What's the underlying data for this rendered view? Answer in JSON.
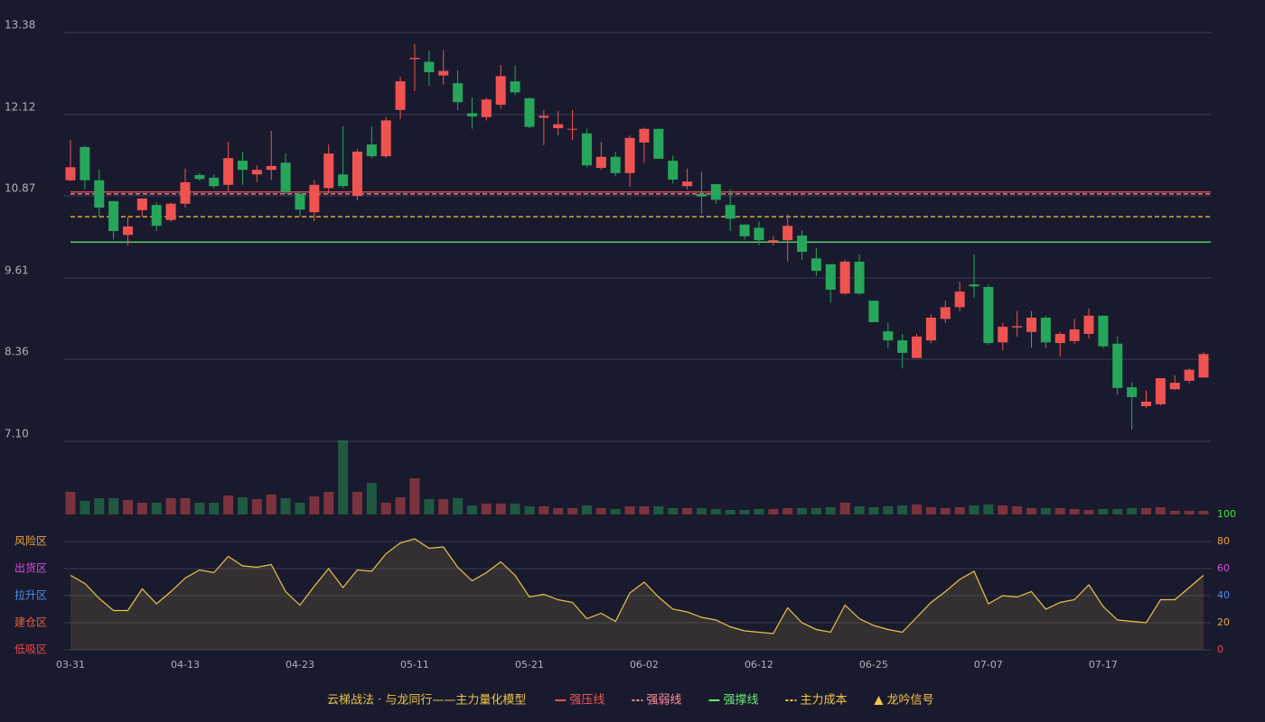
{
  "chart_data": {
    "type": "candlestick",
    "title": "云梯战法 · 与龙同行——主力量化模型",
    "categories": [
      "03-31",
      null,
      null,
      null,
      null,
      null,
      null,
      null,
      "04-13",
      null,
      null,
      null,
      null,
      null,
      null,
      null,
      "04-23",
      null,
      null,
      null,
      null,
      null,
      null,
      null,
      "05-11",
      null,
      null,
      null,
      null,
      null,
      null,
      null,
      "05-21",
      null,
      null,
      null,
      null,
      null,
      null,
      null,
      "06-02",
      null,
      null,
      null,
      null,
      null,
      null,
      null,
      "06-12",
      null,
      null,
      null,
      null,
      null,
      null,
      null,
      "06-25",
      null,
      null,
      null,
      null,
      null,
      null,
      null,
      "07-07",
      null,
      null,
      null,
      null,
      null,
      null,
      null,
      "07-17",
      null,
      null,
      null,
      null,
      null,
      null,
      null
    ],
    "open": [
      11.11,
      11.62,
      11.11,
      10.79,
      10.27,
      10.65,
      10.73,
      10.5,
      10.75,
      11.19,
      11.15,
      11.04,
      11.41,
      11.2,
      11.27,
      11.38,
      10.9,
      10.62,
      10.99,
      11.2,
      10.87,
      11.66,
      11.48,
      12.19,
      12.97,
      12.93,
      12.72,
      12.6,
      12.14,
      12.08,
      12.27,
      12.63,
      12.37,
      12.07,
      11.91,
      11.89,
      11.83,
      11.3,
      11.47,
      11.22,
      11.69,
      11.9,
      11.41,
      11.02,
      10.9,
      11.05,
      10.73,
      10.43,
      10.38,
      10.16,
      10.19,
      10.26,
      9.91,
      9.82,
      9.37,
      9.86,
      9.26,
      8.79,
      8.65,
      8.38,
      8.65,
      8.98,
      9.16,
      9.51,
      9.47,
      8.62,
      8.85,
      8.78,
      9.0,
      8.61,
      8.64,
      8.75,
      9.03,
      8.6,
      7.93,
      7.64,
      7.67,
      7.9,
      8.03,
      8.08
    ],
    "high": [
      11.73,
      11.64,
      11.27,
      10.79,
      10.55,
      10.83,
      10.77,
      10.77,
      11.29,
      11.22,
      11.2,
      11.7,
      11.55,
      11.34,
      11.87,
      11.52,
      10.94,
      11.11,
      11.66,
      11.94,
      11.59,
      11.94,
      12.08,
      12.7,
      13.2,
      13.1,
      13.11,
      12.8,
      12.38,
      12.38,
      12.88,
      12.87,
      12.38,
      12.19,
      12.17,
      12.19,
      11.9,
      11.7,
      11.55,
      11.8,
      11.92,
      11.9,
      11.49,
      11.29,
      11.24,
      11.05,
      10.97,
      10.43,
      10.48,
      10.25,
      10.59,
      10.34,
      10.07,
      9.82,
      9.89,
      9.97,
      9.26,
      8.92,
      8.75,
      8.75,
      9.05,
      9.26,
      9.55,
      9.97,
      9.51,
      8.92,
      9.1,
      9.1,
      9.03,
      8.78,
      8.98,
      9.14,
      9.03,
      8.71,
      8.01,
      7.88,
      8.07,
      8.11,
      8.22,
      8.47
    ],
    "low": [
      11.1,
      10.97,
      10.55,
      10.2,
      10.11,
      10.55,
      10.33,
      10.47,
      10.69,
      11.1,
      10.99,
      10.94,
      11.04,
      11.08,
      11.11,
      10.9,
      10.55,
      10.48,
      10.9,
      10.99,
      10.8,
      11.45,
      11.45,
      12.05,
      12.48,
      12.56,
      12.58,
      12.19,
      11.9,
      12.03,
      12.21,
      12.42,
      11.91,
      11.65,
      11.8,
      11.73,
      11.31,
      11.27,
      11.17,
      11.01,
      11.38,
      11.44,
      11.06,
      10.97,
      10.59,
      10.75,
      10.33,
      10.2,
      10.11,
      10.11,
      9.86,
      9.89,
      9.64,
      9.23,
      9.35,
      9.35,
      8.93,
      8.53,
      8.22,
      8.38,
      8.61,
      8.92,
      9.1,
      9.3,
      8.58,
      8.5,
      8.71,
      8.54,
      8.53,
      8.4,
      8.6,
      8.68,
      8.53,
      7.81,
      7.28,
      7.61,
      7.65,
      7.89,
      7.99,
      8.08
    ],
    "close": [
      11.31,
      11.11,
      10.69,
      10.33,
      10.4,
      10.83,
      10.41,
      10.75,
      11.08,
      11.13,
      11.02,
      11.45,
      11.27,
      11.27,
      11.33,
      10.93,
      10.66,
      11.04,
      11.52,
      11.02,
      11.55,
      11.48,
      12.03,
      12.63,
      12.99,
      12.77,
      12.79,
      12.31,
      12.09,
      12.35,
      12.71,
      12.46,
      11.93,
      12.1,
      11.97,
      11.9,
      11.34,
      11.47,
      11.22,
      11.76,
      11.9,
      11.44,
      11.12,
      11.09,
      10.86,
      10.81,
      10.52,
      10.25,
      10.19,
      10.19,
      10.41,
      10.01,
      9.72,
      9.43,
      9.86,
      9.37,
      8.93,
      8.65,
      8.46,
      8.71,
      9.0,
      9.16,
      9.4,
      9.48,
      8.61,
      8.86,
      8.87,
      9.0,
      8.62,
      8.75,
      8.82,
      9.03,
      8.56,
      7.92,
      7.78,
      7.71,
      8.07,
      8.0,
      8.2,
      8.44
    ],
    "ylim": [
      7.1,
      13.38
    ],
    "yticks": [
      13.38,
      12.12,
      10.87,
      9.61,
      8.36,
      {
        "value": 7.1,
        "label": "7.10"
      }
    ],
    "grid": true,
    "up_color": "#ef5350",
    "down_color": "#26a65b",
    "levels": [
      {
        "name": "强压线",
        "value": 10.93,
        "color": "#ef5350",
        "style": "solid"
      },
      {
        "name": "强弱线",
        "value": 10.9,
        "color": "#ff8fa0",
        "style": "dashed"
      },
      {
        "name": "强撑线",
        "value": 10.16,
        "color": "#66ee77",
        "style": "solid"
      },
      {
        "name": "主力成本",
        "value": 10.55,
        "color": "#f5c542",
        "style": "dashed"
      }
    ],
    "signal": {
      "name": "龙吟信号",
      "color": "#f5c542"
    },
    "volume": {
      "values": [
        25,
        15,
        18,
        18,
        16,
        13,
        13,
        18,
        18,
        13,
        13,
        21,
        19,
        17,
        22,
        18,
        13,
        20,
        25,
        82,
        25,
        35,
        13,
        19,
        40,
        17,
        17,
        18,
        10,
        12,
        12,
        12,
        9,
        9,
        7,
        7,
        10,
        7,
        6,
        9,
        9,
        9,
        7,
        7,
        7,
        6,
        5,
        5,
        6,
        6,
        7,
        7,
        7,
        8,
        13,
        9,
        8,
        9,
        10,
        11,
        8,
        7,
        8,
        10,
        11,
        10,
        9,
        7,
        7,
        7,
        6,
        5,
        6,
        6,
        7,
        7,
        8,
        4,
        4,
        4
      ],
      "ylim": [
        0,
        82
      ]
    },
    "oscillator": {
      "values": [
        55,
        49,
        38,
        29,
        29,
        45,
        34,
        43,
        53,
        59,
        57,
        69,
        62,
        61,
        63,
        43,
        33,
        47,
        60,
        46,
        59,
        58,
        71,
        79,
        82,
        75,
        76,
        61,
        51,
        57,
        65,
        55,
        39,
        41,
        37,
        35,
        23,
        27,
        21,
        42,
        50,
        39,
        30,
        28,
        24,
        22,
        17,
        14,
        13,
        12,
        31,
        20,
        15,
        13,
        33,
        23,
        18,
        15,
        13,
        24,
        35,
        43,
        52,
        58,
        34,
        40,
        39,
        43,
        30,
        35,
        37,
        48,
        32,
        22,
        21,
        20,
        37,
        37,
        46,
        55
      ],
      "color": "#e8c547",
      "ylim": [
        0,
        100
      ],
      "yticks": [
        100,
        80,
        60,
        40,
        20,
        0
      ],
      "ytick_colors": [
        "#44dd44",
        "#e8a33c",
        "#d94bd9",
        "#4a8fe8",
        "#e8a33c",
        "#e84a4a"
      ],
      "zones": [
        {
          "label": "风险区",
          "value": 80,
          "color": "#e8a33c"
        },
        {
          "label": "出货区",
          "value": 60,
          "color": "#d94bd9"
        },
        {
          "label": "拉升区",
          "value": 40,
          "color": "#4a8fe8"
        },
        {
          "label": "建仓区",
          "value": 20,
          "color": "#e8603c"
        },
        {
          "label": "低吸区",
          "value": 0,
          "color": "#e84a4a"
        }
      ]
    }
  }
}
